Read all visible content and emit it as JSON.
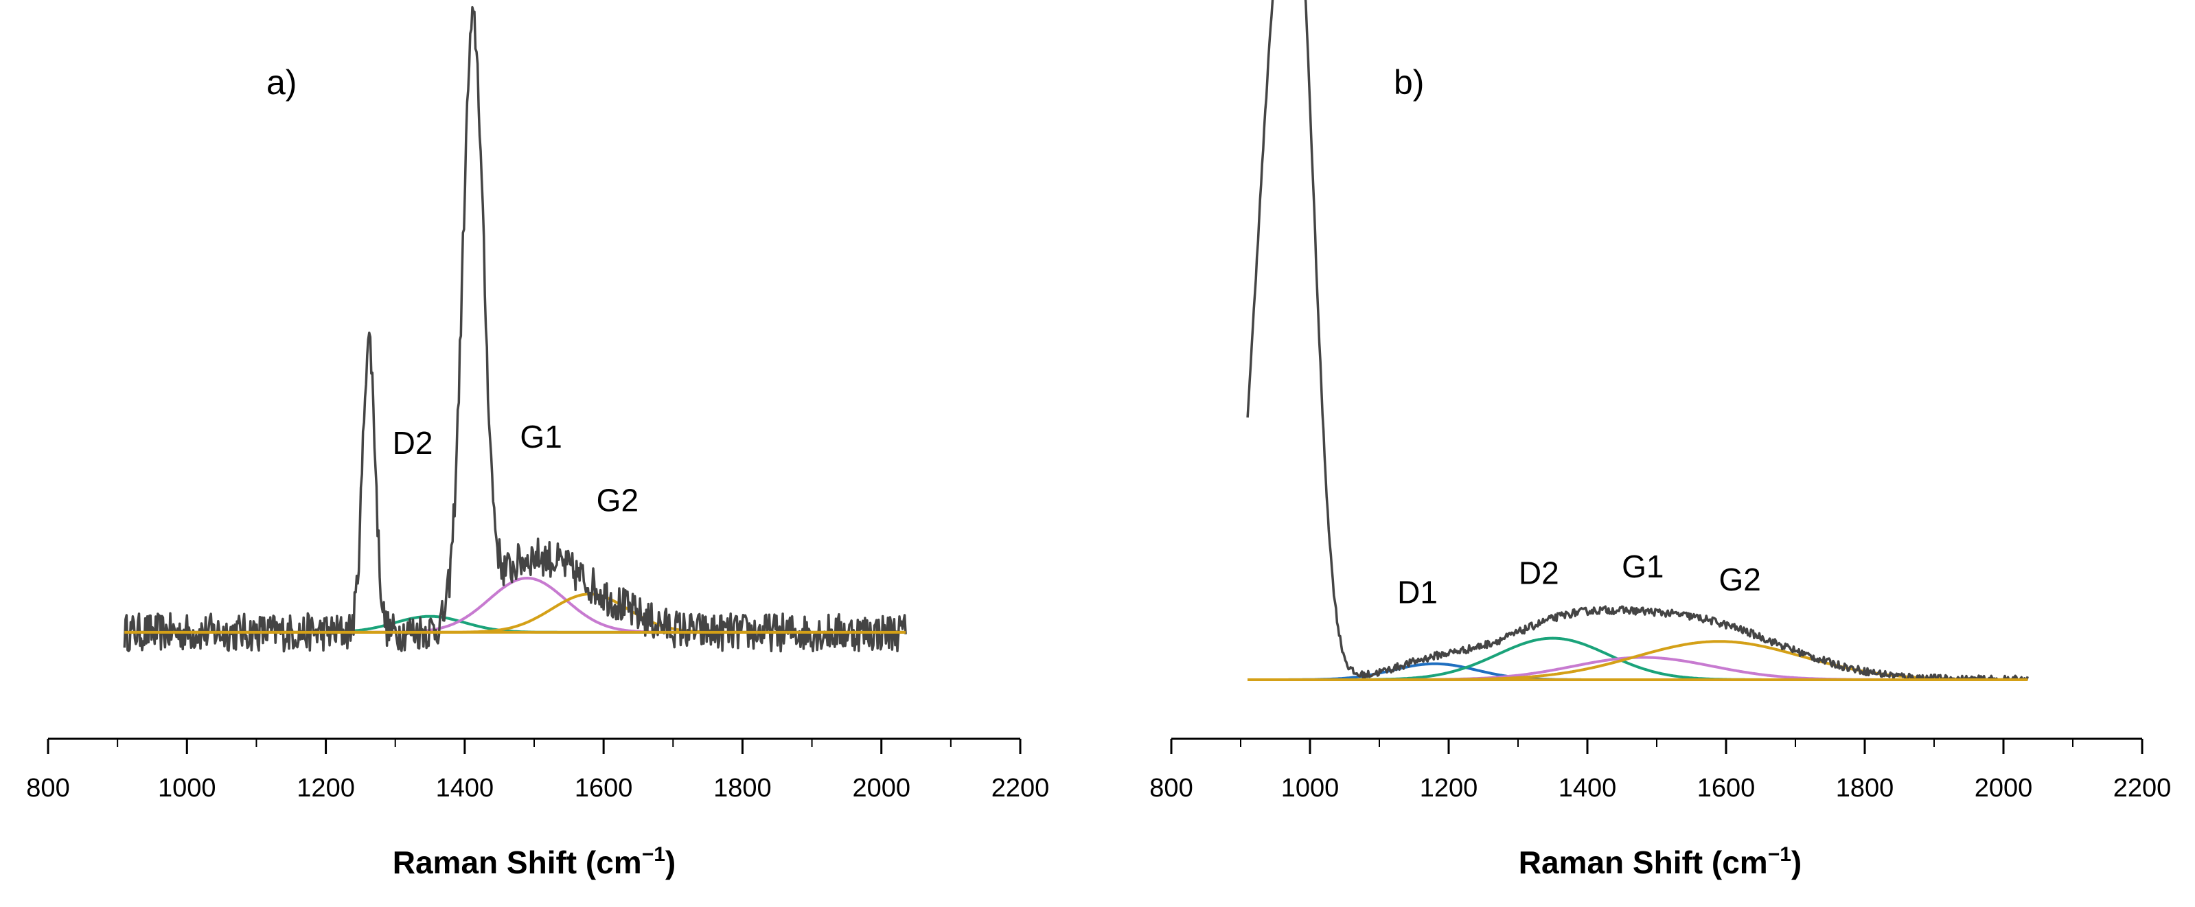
{
  "chart_data": [
    {
      "type": "line",
      "panel": "a)",
      "xlabel": "Raman Shift (cm",
      "xlabel_sup": "−1",
      "xlabel_close": ")",
      "ylabel": "",
      "xlim": [
        800,
        2200
      ],
      "ylim": [
        0,
        1.0
      ],
      "xticks": [
        800,
        1000,
        1200,
        1400,
        1600,
        1800,
        2000,
        2200
      ],
      "grid": false,
      "x_range": [
        910,
        2035
      ],
      "baseline": 0.04,
      "noise": 0.03,
      "spectrum_peaks": [
        {
          "center": 1262,
          "height": 0.46,
          "width": 9
        },
        {
          "center": 1412,
          "height": 0.92,
          "width": 15
        },
        {
          "center": 1490,
          "height": 0.1,
          "width": 55
        },
        {
          "center": 1580,
          "height": 0.05,
          "width": 60
        }
      ],
      "series": [
        {
          "name": "D2",
          "color": "#1aa37a",
          "center": 1350,
          "height": 0.025,
          "width": 50
        },
        {
          "name": "G1",
          "color": "#c77ad0",
          "center": 1490,
          "height": 0.085,
          "width": 55
        },
        {
          "name": "G2",
          "color": "#d4a017",
          "center": 1580,
          "height": 0.06,
          "width": 55
        }
      ],
      "annotations": [
        {
          "text": "D2",
          "x": 1325,
          "y": 0.32
        },
        {
          "text": "G1",
          "x": 1510,
          "y": 0.33
        },
        {
          "text": "G2",
          "x": 1620,
          "y": 0.23
        }
      ]
    },
    {
      "type": "line",
      "panel": "b)",
      "xlabel": "Raman Shift (cm",
      "xlabel_sup": "−1",
      "xlabel_close": ")",
      "ylabel": "",
      "xlim": [
        800,
        2200
      ],
      "ylim": [
        0,
        1.0
      ],
      "xticks": [
        800,
        1000,
        1200,
        1400,
        1600,
        1800,
        2000,
        2200
      ],
      "grid": false,
      "x_range": [
        910,
        2035
      ],
      "baseline": 0.0,
      "noise": 0.006,
      "spectrum_peaks": [
        {
          "center": 945,
          "height": 0.8,
          "width": 30
        },
        {
          "center": 985,
          "height": 0.9,
          "width": 25
        },
        {
          "center": 1180,
          "height": 0.025,
          "width": 60
        },
        {
          "center": 1350,
          "height": 0.065,
          "width": 90
        },
        {
          "center": 1480,
          "height": 0.045,
          "width": 110
        },
        {
          "center": 1590,
          "height": 0.06,
          "width": 120
        }
      ],
      "series": [
        {
          "name": "D1",
          "color": "#1f6fc0",
          "center": 1180,
          "height": 0.025,
          "width": 60
        },
        {
          "name": "D2",
          "color": "#1aa37a",
          "center": 1350,
          "height": 0.065,
          "width": 80
        },
        {
          "name": "G1",
          "color": "#c77ad0",
          "center": 1480,
          "height": 0.035,
          "width": 100
        },
        {
          "name": "G2",
          "color": "#d4a017",
          "center": 1590,
          "height": 0.06,
          "width": 120
        }
      ],
      "annotations": [
        {
          "text": "D1",
          "x": 1155,
          "y": 0.12
        },
        {
          "text": "D2",
          "x": 1330,
          "y": 0.15
        },
        {
          "text": "G1",
          "x": 1480,
          "y": 0.16
        },
        {
          "text": "G2",
          "x": 1620,
          "y": 0.14
        }
      ]
    }
  ]
}
